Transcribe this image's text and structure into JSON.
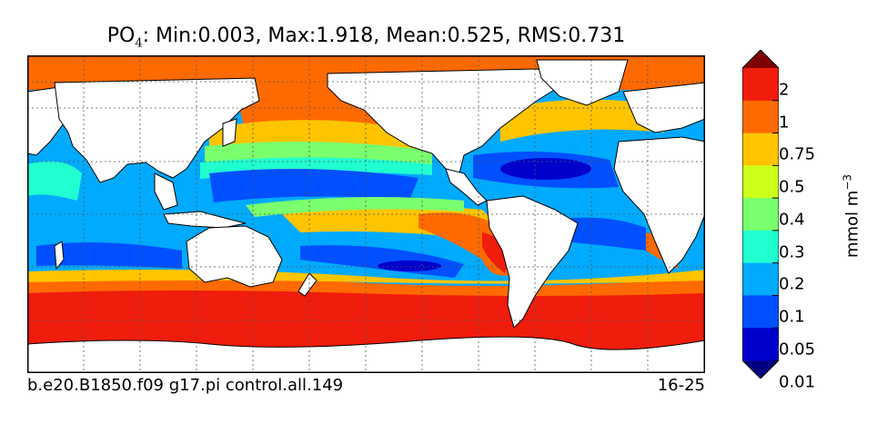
{
  "title": {
    "species": "PO",
    "subscript": "4",
    "stats": ": Min:0.003, Max:1.918, Mean:0.525, RMS:0.731"
  },
  "footer": {
    "run_name": "b.e20.B1850.f09 g17.pi control.all.149",
    "years": "16-25"
  },
  "colorbar": {
    "units_prefix": "mmol m",
    "units_exponent": "−3",
    "labels": [
      "2",
      "1",
      "0.75",
      "0.5",
      "0.4",
      "0.3",
      "0.2",
      "0.1",
      "0.05",
      "0.01"
    ],
    "colors": [
      "#000080",
      "#0000cd",
      "#0050ff",
      "#00aaff",
      "#20ffd0",
      "#7aff6e",
      "#ccff1a",
      "#ffc400",
      "#ff6a00",
      "#f01c0c",
      "#7f0000"
    ]
  },
  "map": {
    "land_color": "#ffffff",
    "grid": "dotted"
  }
}
